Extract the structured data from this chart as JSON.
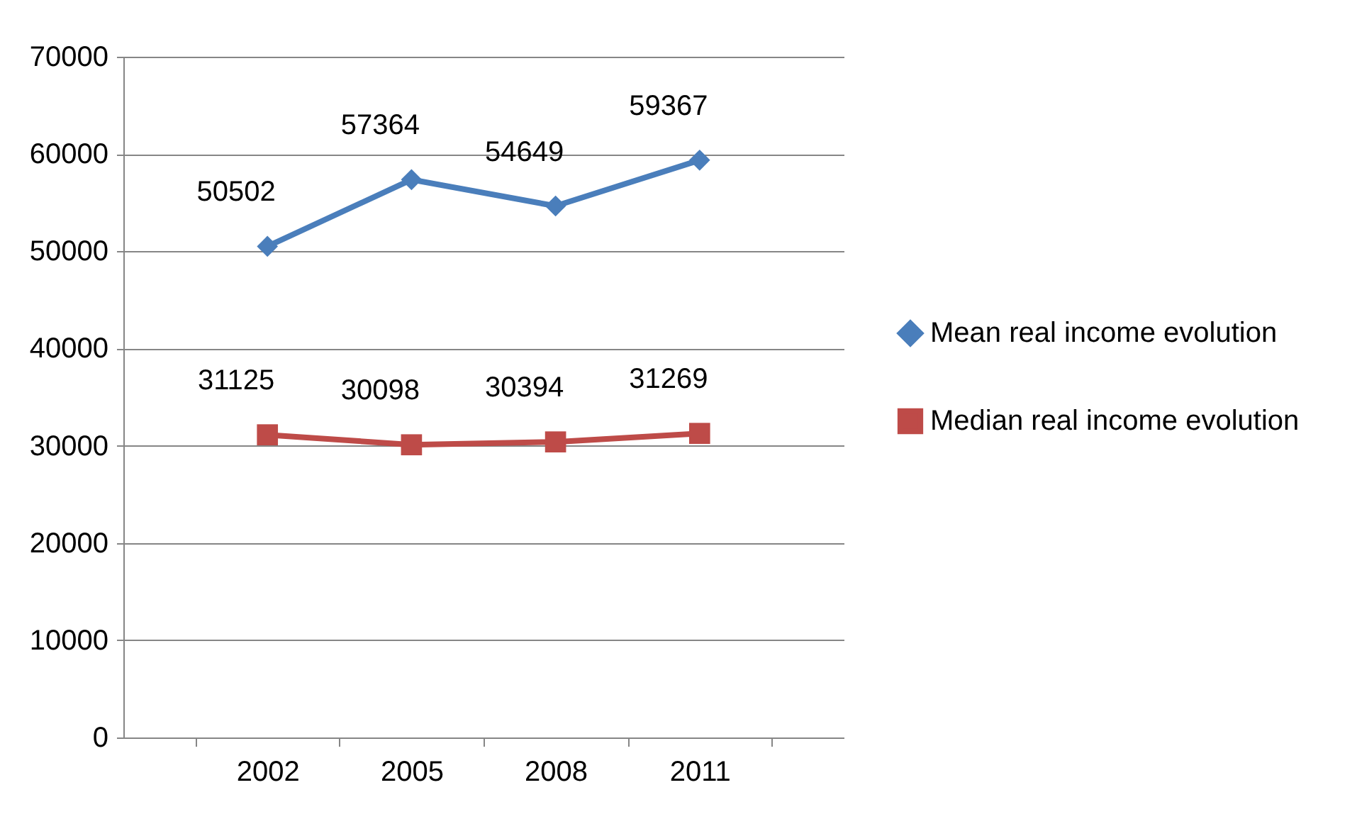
{
  "chart_data": {
    "type": "line",
    "categories": [
      "2002",
      "2005",
      "2008",
      "2011"
    ],
    "series": [
      {
        "name": "Mean real income evolution",
        "color": "#4a7ebb",
        "marker": "diamond",
        "values": [
          50502,
          57364,
          54649,
          59367
        ]
      },
      {
        "name": "Median real income evolution",
        "color": "#be4b48",
        "marker": "square",
        "values": [
          31125,
          30098,
          30394,
          31269
        ]
      }
    ],
    "ylim": [
      0,
      70000
    ],
    "yticks": [
      0,
      10000,
      20000,
      30000,
      40000,
      50000,
      60000,
      70000
    ],
    "grid": "y",
    "legend": "right",
    "data_labels": true,
    "line_style": "solid"
  }
}
